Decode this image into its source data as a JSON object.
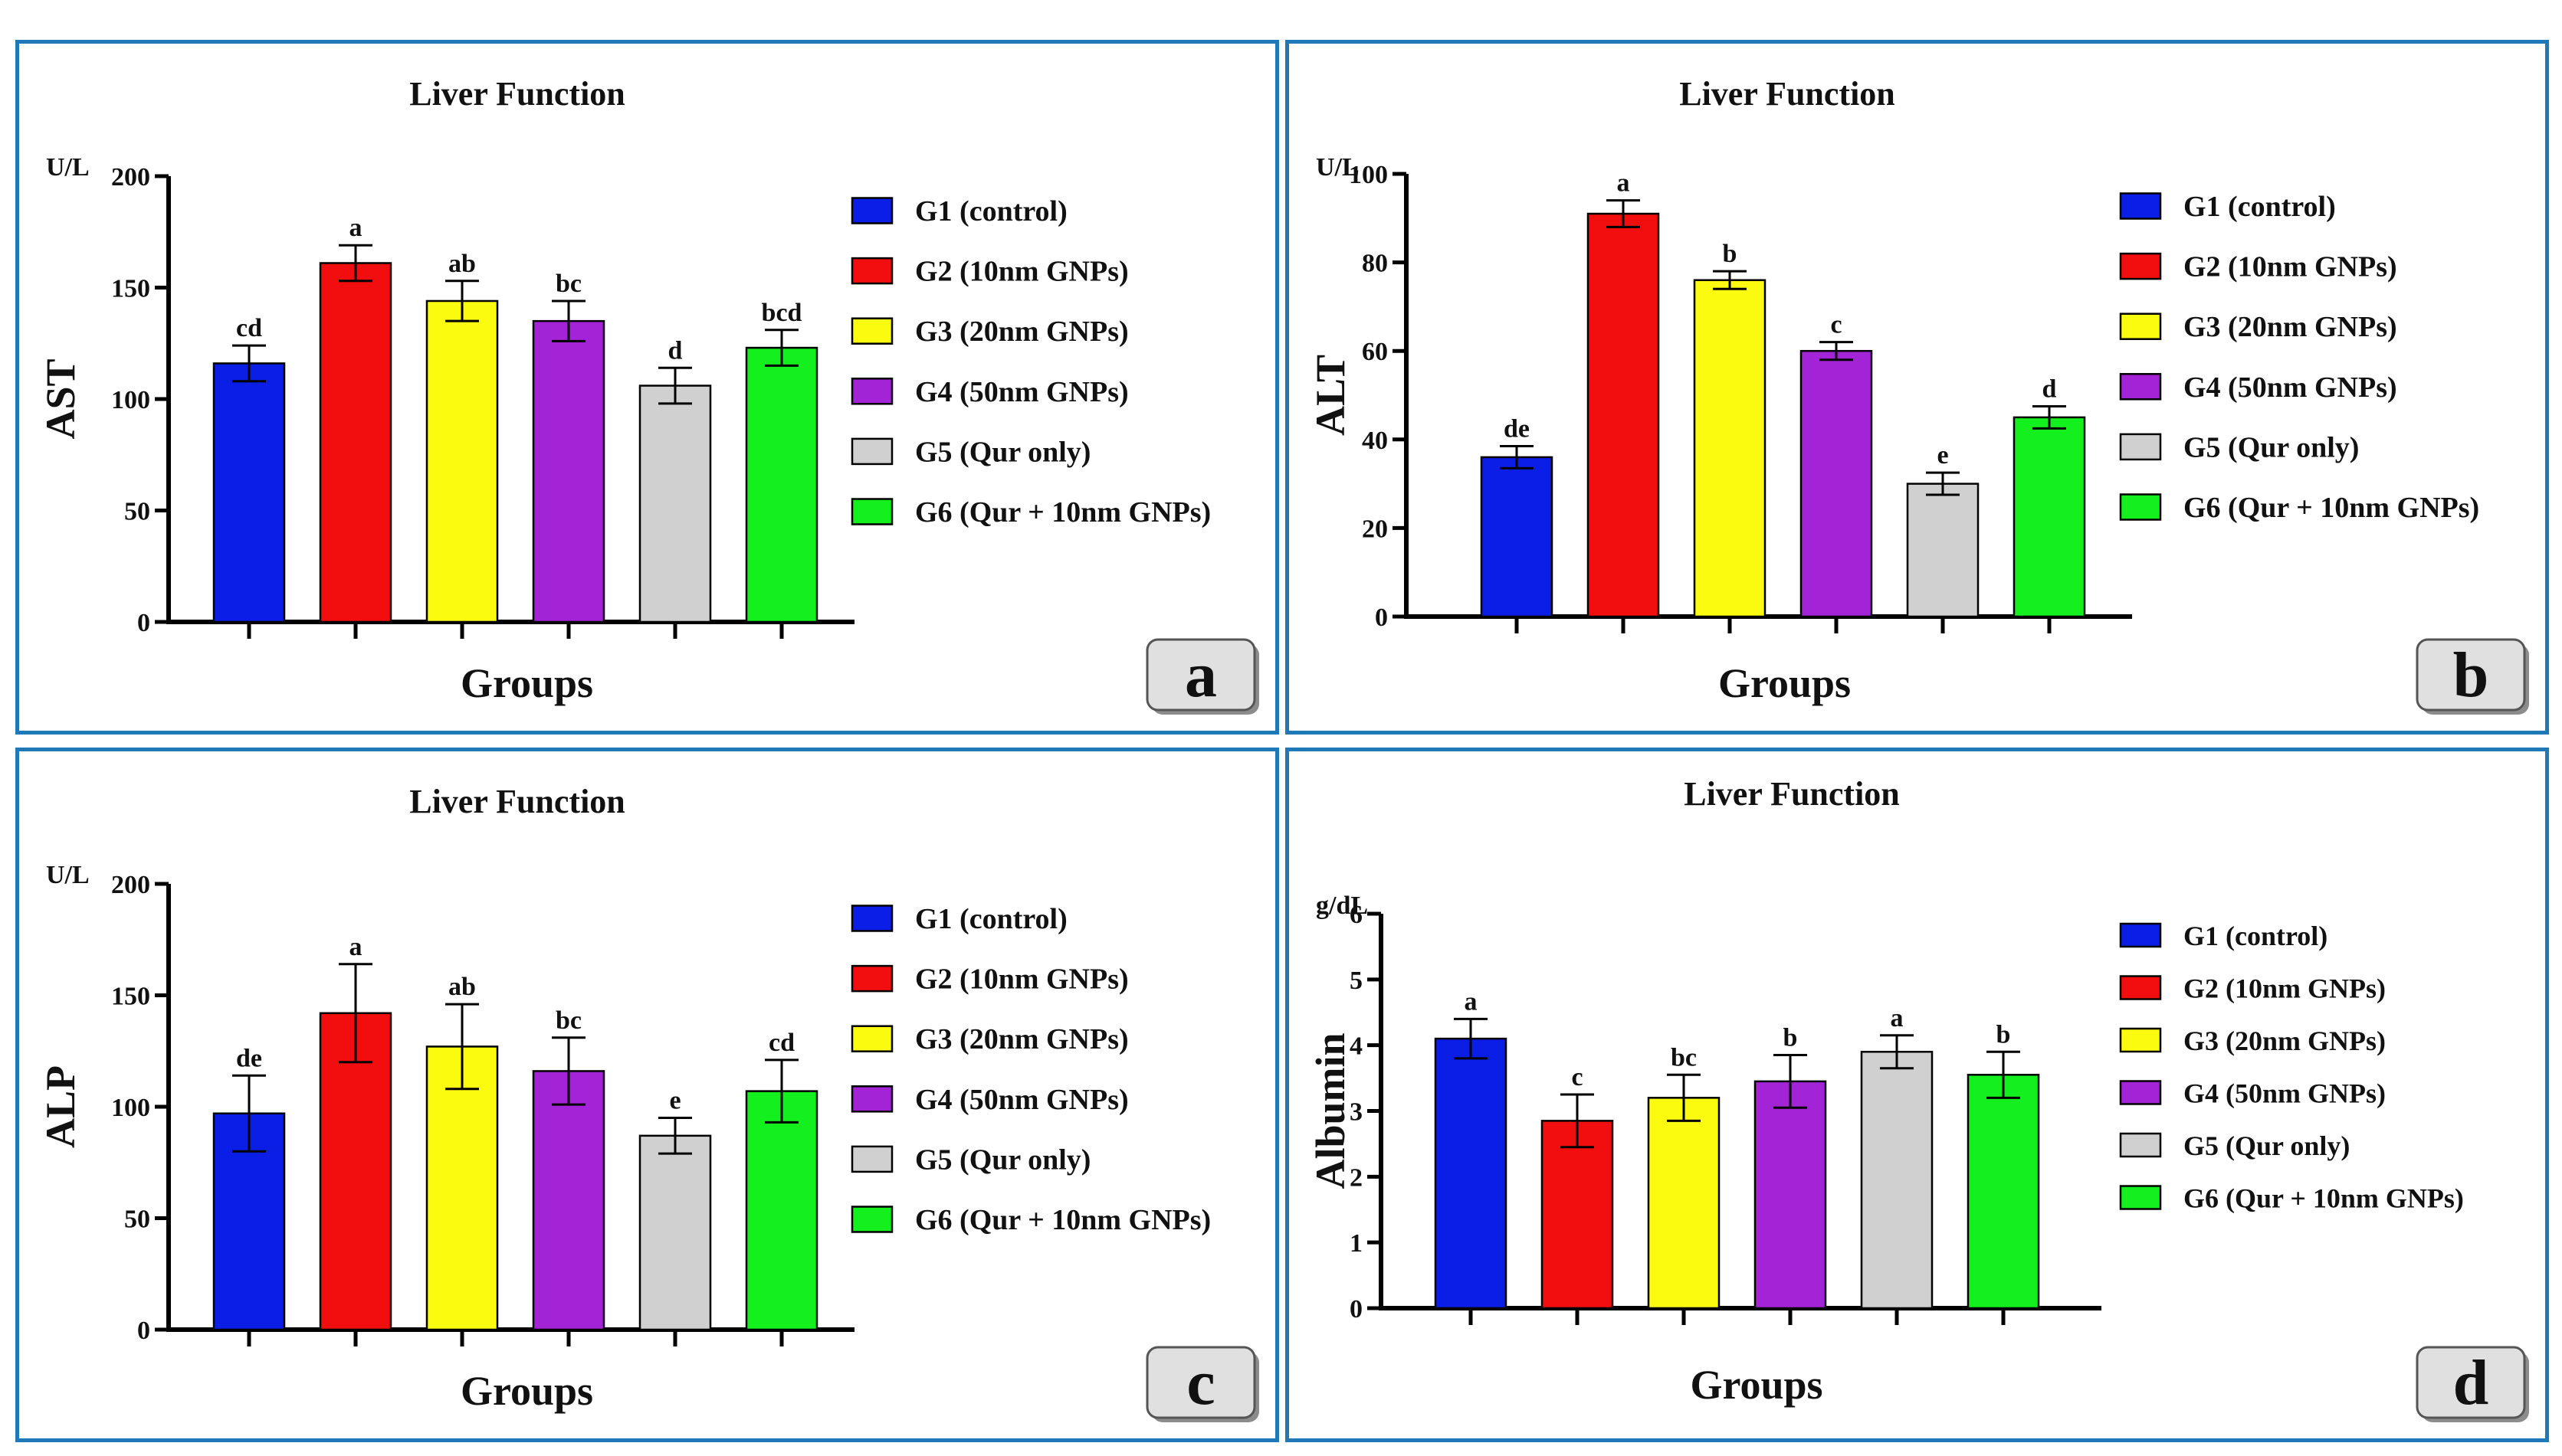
{
  "figure": {
    "legend_labels": [
      "G1 (control)",
      "G2 (10nm GNPs)",
      "G3 (20nm GNPs)",
      "G4 (50nm GNPs)",
      "G5 (Qur only)",
      "G6 (Qur + 10nm GNPs)"
    ],
    "bar_colors": [
      "#0b1ee6",
      "#f20e0e",
      "#fbfb10",
      "#a224d6",
      "#d0d0d0",
      "#14f01e"
    ],
    "panel_border_color": "#1f78b8"
  },
  "chart_data": [
    {
      "panel_label": "a",
      "type": "bar",
      "title": "Liver Function",
      "ylabel": "AST",
      "unit": "U/L",
      "xlabel": "Groups",
      "ylim": [
        0,
        200
      ],
      "yticks": [
        0,
        50,
        100,
        150,
        200
      ],
      "ytick_labels": [
        "0",
        "50",
        "100",
        "150",
        "200"
      ],
      "categories": [
        "G1 (control)",
        "G2 (10nm GNPs)",
        "G3 (20nm GNPs)",
        "G4 (50nm GNPs)",
        "G5 (Qur only)",
        "G6 (Qur + 10nm GNPs)"
      ],
      "values": [
        116,
        161,
        144,
        135,
        106,
        123
      ],
      "errors": [
        8,
        8,
        9,
        9,
        8,
        8
      ],
      "significance": [
        "cd",
        "a",
        "ab",
        "bc",
        "d",
        "bcd"
      ]
    },
    {
      "panel_label": "b",
      "type": "bar",
      "title": "Liver Function",
      "ylabel": "ALT",
      "unit": "U/L",
      "xlabel": "Groups",
      "ylim": [
        0,
        100
      ],
      "yticks": [
        0,
        20,
        40,
        60,
        80,
        100
      ],
      "ytick_labels": [
        "0",
        "20",
        "40",
        "60",
        "80",
        "100"
      ],
      "categories": [
        "G1 (control)",
        "G2 (10nm GNPs)",
        "G3 (20nm GNPs)",
        "G4 (50nm GNPs)",
        "G5 (Qur only)",
        "G6 (Qur + 10nm GNPs)"
      ],
      "values": [
        36,
        91,
        76,
        60,
        30,
        45
      ],
      "errors": [
        2.5,
        3,
        2,
        2,
        2.5,
        2.5
      ],
      "significance": [
        "de",
        "a",
        "b",
        "c",
        "e",
        "d"
      ]
    },
    {
      "panel_label": "c",
      "type": "bar",
      "title": "Liver Function",
      "ylabel": "ALP",
      "unit": "U/L",
      "xlabel": "Groups",
      "ylim": [
        0,
        200
      ],
      "yticks": [
        0,
        50,
        100,
        150,
        200
      ],
      "ytick_labels": [
        "0",
        "50",
        "100",
        "150",
        "200"
      ],
      "categories": [
        "G1 (control)",
        "G2 (10nm GNPs)",
        "G3 (20nm GNPs)",
        "G4 (50nm GNPs)",
        "G5 (Qur only)",
        "G6 (Qur + 10nm GNPs)"
      ],
      "values": [
        97,
        142,
        127,
        116,
        87,
        107
      ],
      "errors": [
        17,
        22,
        19,
        15,
        8,
        14
      ],
      "significance": [
        "de",
        "a",
        "ab",
        "bc",
        "e",
        "cd"
      ]
    },
    {
      "panel_label": "d",
      "type": "bar",
      "title": "Liver Function",
      "ylabel": "Albumin",
      "unit": "g/dL",
      "xlabel": "Groups",
      "ylim": [
        0,
        6
      ],
      "yticks": [
        0,
        1,
        2,
        3,
        4,
        5,
        6
      ],
      "ytick_labels": [
        "0",
        "1",
        "2",
        "3",
        "4",
        "5",
        "6"
      ],
      "categories": [
        "G1 (control)",
        "G2 (10nm GNPs)",
        "G3 (20nm GNPs)",
        "G4 (50nm GNPs)",
        "G5 (Qur only)",
        "G6 (Qur + 10nm GNPs)"
      ],
      "values": [
        4.1,
        2.85,
        3.2,
        3.45,
        3.9,
        3.55
      ],
      "errors": [
        0.3,
        0.4,
        0.35,
        0.4,
        0.25,
        0.35
      ],
      "significance": [
        "a",
        "c",
        "bc",
        "b",
        "a",
        "b"
      ]
    }
  ]
}
